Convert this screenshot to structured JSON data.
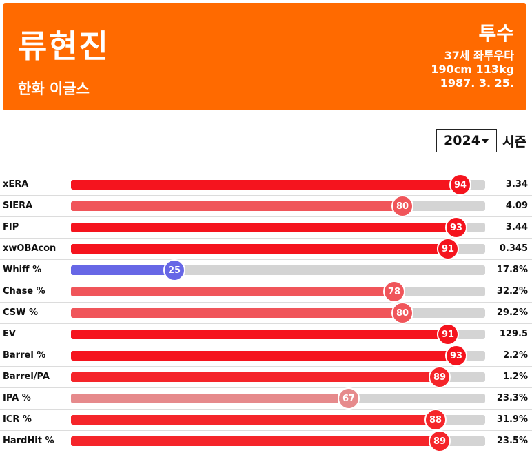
{
  "player": {
    "name": "류현진",
    "team": "한화 이글스",
    "position": "투수",
    "age_hand": "37세 좌투우타",
    "body": "190cm 113kg",
    "birth": "1987. 3. 25."
  },
  "season": {
    "selected": "2024",
    "label": "시즌"
  },
  "stats": [
    {
      "label": "xERA",
      "pct": 94,
      "value": "3.34",
      "color": "#f5141e"
    },
    {
      "label": "SIERA",
      "pct": 80,
      "value": "4.09",
      "color": "#f0555a"
    },
    {
      "label": "FIP",
      "pct": 93,
      "value": "3.44",
      "color": "#f5141e"
    },
    {
      "label": "xwOBAcon",
      "pct": 91,
      "value": "0.345",
      "color": "#f5141e"
    },
    {
      "label": "Whiff %",
      "pct": 25,
      "value": "17.8%",
      "color": "#6767e6"
    },
    {
      "label": "Chase %",
      "pct": 78,
      "value": "32.2%",
      "color": "#f0555a"
    },
    {
      "label": "CSW %",
      "pct": 80,
      "value": "29.2%",
      "color": "#f0555a"
    },
    {
      "label": "EV",
      "pct": 91,
      "value": "129.5",
      "color": "#f5141e"
    },
    {
      "label": "Barrel %",
      "pct": 93,
      "value": "2.2%",
      "color": "#f5141e"
    },
    {
      "label": "Barrel/PA",
      "pct": 89,
      "value": "1.2%",
      "color": "#f5252a"
    },
    {
      "label": "IPA %",
      "pct": 67,
      "value": "23.3%",
      "color": "#e68a8c"
    },
    {
      "label": "ICR %",
      "pct": 88,
      "value": "31.9%",
      "color": "#f5252a"
    },
    {
      "label": "HardHit %",
      "pct": 89,
      "value": "23.5%",
      "color": "#f5252a"
    }
  ]
}
